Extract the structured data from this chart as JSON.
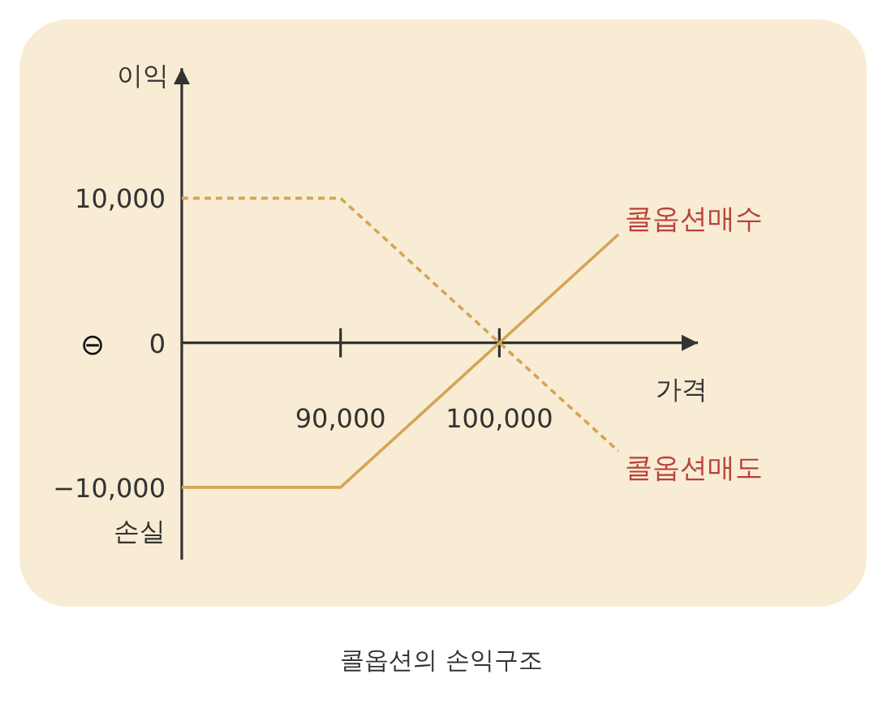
{
  "chart_data": {
    "type": "line",
    "title": "콜옵션의 손익구조",
    "xlabel": "가격",
    "ylabel": "이익",
    "annotations": [
      "손실",
      "⊖"
    ],
    "xlim": [
      80000,
      112500
    ],
    "ylim": [
      -15000,
      19000
    ],
    "xticks": [
      {
        "value": 90000,
        "label": "90,000"
      },
      {
        "value": 100000,
        "label": "100,000"
      }
    ],
    "yticks": [
      {
        "value": 10000,
        "label": "10,000"
      },
      {
        "value": 0,
        "label": "0"
      },
      {
        "value": -10000,
        "label": "−10,000"
      }
    ],
    "series": [
      {
        "name": "콜옵션매수",
        "color": "#d4a456",
        "x": [
          80000,
          90000,
          107500
        ],
        "values": [
          -10000,
          -10000,
          7500
        ],
        "line_style": "solid"
      },
      {
        "name": "콜옵션매도",
        "color": "#d4a456",
        "x": [
          80000,
          90000,
          107500
        ],
        "values": [
          10000,
          10000,
          -7500
        ],
        "line_style": "dashed"
      }
    ],
    "legend": false,
    "grid": false,
    "marker": "none"
  }
}
